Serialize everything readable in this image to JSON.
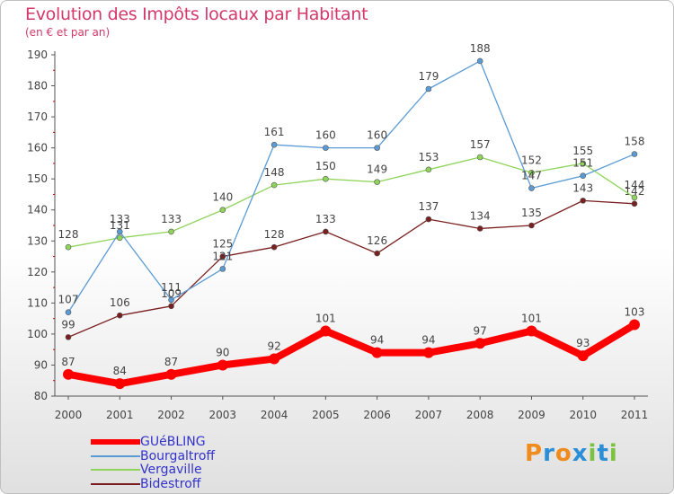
{
  "chart_data": {
    "type": "line",
    "title": "Evolution des Impôts locaux par Habitant",
    "subtitle": "(en € et par an)",
    "x": [
      "2000",
      "2001",
      "2002",
      "2003",
      "2004",
      "2005",
      "2006",
      "2007",
      "2008",
      "2009",
      "2010",
      "2011"
    ],
    "ylim": [
      80,
      190
    ],
    "yticks": [
      80,
      90,
      100,
      110,
      120,
      130,
      140,
      150,
      160,
      170,
      180,
      190
    ],
    "grid": false,
    "series": [
      {
        "name": "Bidestroff",
        "color": "#7a1f1f",
        "values": [
          99,
          106,
          109,
          125,
          128,
          133,
          126,
          137,
          134,
          135,
          143,
          142
        ]
      },
      {
        "name": "Vergaville",
        "color": "#8fd45a",
        "values": [
          128,
          131,
          133,
          140,
          148,
          150,
          149,
          153,
          157,
          152,
          155,
          144
        ]
      },
      {
        "name": "Bourgaltroff",
        "color": "#5b9bd5",
        "values": [
          107,
          133,
          111,
          121,
          161,
          160,
          160,
          179,
          188,
          147,
          151,
          158
        ]
      },
      {
        "name": "GUéBLING",
        "color": "#ff0000",
        "values": [
          87,
          84,
          87,
          90,
          92,
          101,
          94,
          94,
          97,
          101,
          93,
          103
        ]
      }
    ]
  },
  "legend": [
    {
      "name": "GUéBLING",
      "color": "#ff0000"
    },
    {
      "name": "Bourgaltroff",
      "color": "#5b9bd5"
    },
    {
      "name": "Vergaville",
      "color": "#8fd45a"
    },
    {
      "name": "Bidestroff",
      "color": "#7a1f1f"
    }
  ],
  "logo": {
    "letters": [
      "P",
      "r",
      "o",
      "x",
      "i",
      "t",
      "i"
    ],
    "colors": [
      "#f08c1e",
      "#2a8fd6",
      "#f08c1e",
      "#2a8fd6",
      "#7cc242",
      "#2a8fd6",
      "#7cc242"
    ]
  }
}
